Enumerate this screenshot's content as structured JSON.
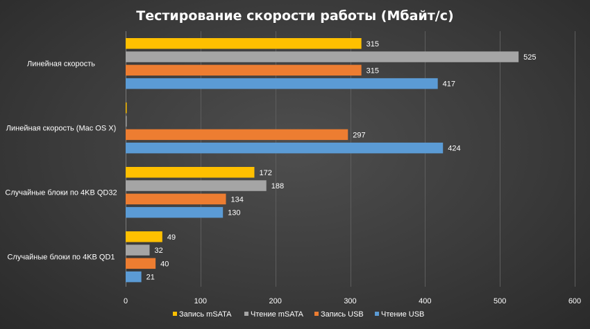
{
  "chart_data": {
    "type": "bar",
    "orientation": "horizontal",
    "title": "Тестирование скорости работы (Мбайт/с)",
    "categories": [
      "Линейная скорость",
      "Линейная скорость (Mac OS X)",
      "Случайные блоки по 4KB QD32",
      "Случайные блоки по 4KB QD1"
    ],
    "series": [
      {
        "name": "Запись mSATA",
        "color": "#ffc000",
        "values": [
          315,
          1,
          172,
          49
        ],
        "labels": [
          "315",
          "",
          "172",
          "49"
        ]
      },
      {
        "name": "Чтение mSATA",
        "color": "#a5a5a5",
        "values": [
          525,
          1,
          188,
          32
        ],
        "labels": [
          "525",
          "",
          "188",
          "32"
        ]
      },
      {
        "name": "Запись USB",
        "color": "#ed7d31",
        "values": [
          315,
          297,
          134,
          40
        ],
        "labels": [
          "315",
          "297",
          "134",
          "40"
        ]
      },
      {
        "name": "Чтение USB",
        "color": "#5b9bd5",
        "values": [
          417,
          424,
          130,
          21
        ],
        "labels": [
          "417",
          "424",
          "130",
          "21"
        ]
      }
    ],
    "xlim": [
      0,
      600
    ],
    "xticks": [
      "0",
      "100",
      "200",
      "300",
      "400",
      "500",
      "600"
    ],
    "grid": true,
    "legend": "bottom"
  }
}
